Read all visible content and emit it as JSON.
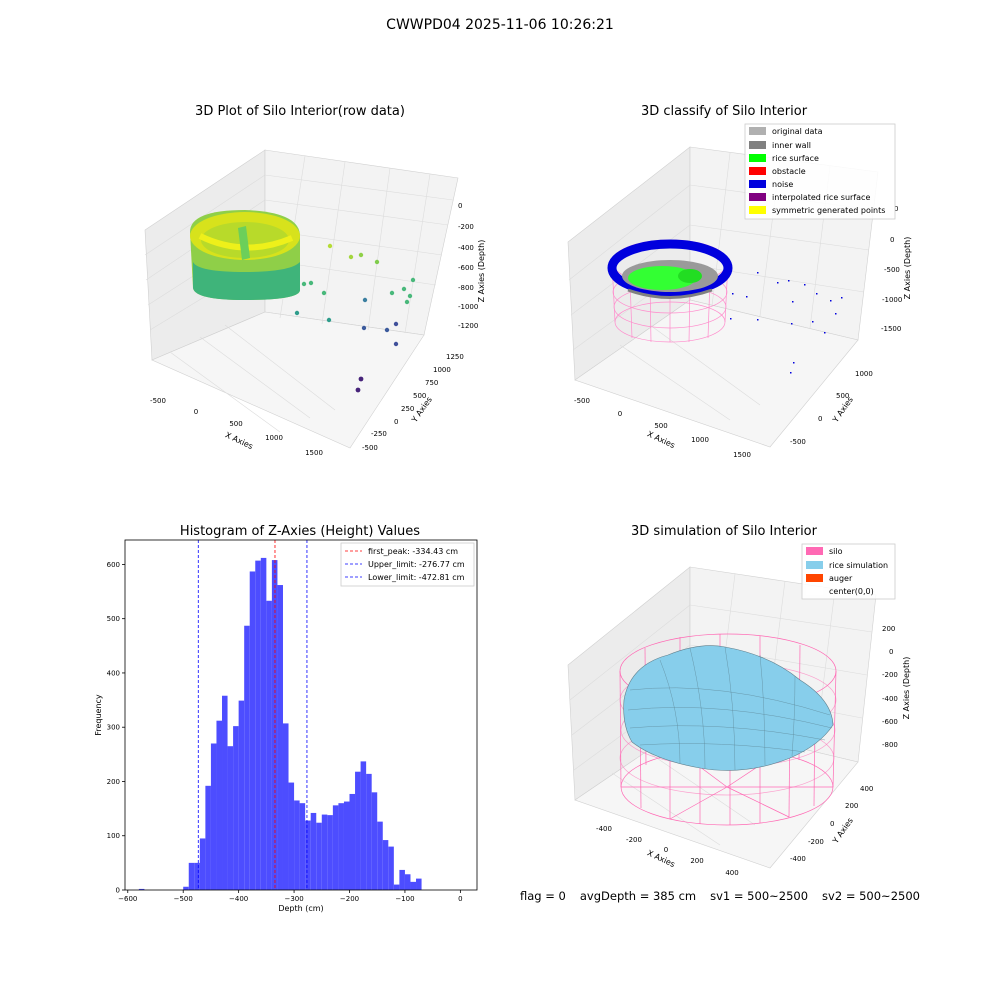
{
  "figure": {
    "suptitle": "CWWPD04 2025-11-06 10:26:21",
    "footer": {
      "flag": "flag = 0",
      "avg_depth": "avgDepth = 385 cm",
      "sv1": "sv1 = 500~2500",
      "sv2": "sv2 = 500~2500"
    }
  },
  "panels": {
    "raw": {
      "title": "3D Plot of Silo Interior(row data)",
      "x_label": "X Axies",
      "y_label": "Y Axies",
      "z_label": "Z Axies (Depth)",
      "x_ticks": [
        "-500",
        "0",
        "500",
        "1000",
        "1500"
      ],
      "y_ticks": [
        "-500",
        "-250",
        "0",
        "250",
        "500",
        "750",
        "1000",
        "1250"
      ],
      "z_ticks": [
        "0",
        "-200",
        "-400",
        "-600",
        "-800",
        "-1000",
        "-1200"
      ]
    },
    "classify": {
      "title": "3D classify of Silo Interior",
      "x_label": "X Axies",
      "y_label": "Y Axies",
      "z_label": "Z Axies (Depth)",
      "x_ticks": [
        "-500",
        "0",
        "500",
        "1000",
        "1500"
      ],
      "y_ticks": [
        "-500",
        "0",
        "500",
        "1000"
      ],
      "z_ticks": [
        "0",
        "-500",
        "-1000",
        "-1500"
      ],
      "z_top_tick": "0",
      "legend": [
        {
          "label": "original data",
          "color": "#b0b0b0"
        },
        {
          "label": "inner wall",
          "color": "#808080"
        },
        {
          "label": "rice surface",
          "color": "#00ff00"
        },
        {
          "label": "obstacle",
          "color": "#ff0000"
        },
        {
          "label": "noise",
          "color": "#0000dd"
        },
        {
          "label": "interpolated rice surface",
          "color": "#800080"
        },
        {
          "label": "symmetric generated points",
          "color": "#ffff00"
        }
      ]
    },
    "simulation": {
      "title": "3D simulation of Silo Interior",
      "x_label": "X Axies",
      "y_label": "Y Axies",
      "z_label": "Z Axies (Depth)",
      "x_ticks": [
        "-400",
        "-200",
        "0",
        "200",
        "400"
      ],
      "y_ticks": [
        "-400",
        "-200",
        "0",
        "200",
        "400"
      ],
      "z_ticks": [
        "200",
        "0",
        "-200",
        "-400",
        "-600",
        "-800"
      ],
      "legend": [
        {
          "label": "silo",
          "color": "#ff69b4"
        },
        {
          "label": "rice simulation",
          "color": "#87ceeb"
        },
        {
          "label": "auger",
          "color": "#ff4500"
        },
        {
          "label": "center(0,0)",
          "color": "#ffffff"
        }
      ]
    }
  },
  "chart_data": {
    "type": "bar",
    "title": "Histogram of Z-Axies (Height) Values",
    "xlabel": "Depth (cm)",
    "ylabel": "Frequency",
    "xlim": [
      -605,
      30
    ],
    "ylim": [
      0,
      645
    ],
    "x_ticks": [
      -600,
      -500,
      -400,
      -300,
      -200,
      -100,
      0
    ],
    "y_ticks": [
      0,
      100,
      200,
      300,
      400,
      500,
      600
    ],
    "bar_color": "#4d4dff",
    "bin_width": 10,
    "bins": [
      {
        "x": -575,
        "count": 2
      },
      {
        "x": -495,
        "count": 6
      },
      {
        "x": -485,
        "count": 50
      },
      {
        "x": -475,
        "count": 50
      },
      {
        "x": -465,
        "count": 95
      },
      {
        "x": -455,
        "count": 192
      },
      {
        "x": -445,
        "count": 270
      },
      {
        "x": -435,
        "count": 312
      },
      {
        "x": -425,
        "count": 358
      },
      {
        "x": -415,
        "count": 265
      },
      {
        "x": -405,
        "count": 302
      },
      {
        "x": -395,
        "count": 349
      },
      {
        "x": -385,
        "count": 487
      },
      {
        "x": -375,
        "count": 587
      },
      {
        "x": -365,
        "count": 607
      },
      {
        "x": -355,
        "count": 612
      },
      {
        "x": -345,
        "count": 533
      },
      {
        "x": -335,
        "count": 608
      },
      {
        "x": -325,
        "count": 562
      },
      {
        "x": -315,
        "count": 307
      },
      {
        "x": -305,
        "count": 198
      },
      {
        "x": -295,
        "count": 165
      },
      {
        "x": -285,
        "count": 160
      },
      {
        "x": -275,
        "count": 128
      },
      {
        "x": -265,
        "count": 142
      },
      {
        "x": -255,
        "count": 124
      },
      {
        "x": -245,
        "count": 139
      },
      {
        "x": -235,
        "count": 138
      },
      {
        "x": -225,
        "count": 156
      },
      {
        "x": -215,
        "count": 160
      },
      {
        "x": -205,
        "count": 163
      },
      {
        "x": -195,
        "count": 177
      },
      {
        "x": -185,
        "count": 218
      },
      {
        "x": -175,
        "count": 237
      },
      {
        "x": -165,
        "count": 214
      },
      {
        "x": -155,
        "count": 180
      },
      {
        "x": -145,
        "count": 126
      },
      {
        "x": -135,
        "count": 92
      },
      {
        "x": -125,
        "count": 80
      },
      {
        "x": -115,
        "count": 10
      },
      {
        "x": -105,
        "count": 37
      },
      {
        "x": -95,
        "count": 29
      },
      {
        "x": -85,
        "count": 15
      },
      {
        "x": -75,
        "count": 21
      }
    ],
    "vlines": [
      {
        "label": "first_peak: -334.43 cm",
        "x": -334.43,
        "color": "#ff0000"
      },
      {
        "label": "Upper_limit: -276.77 cm",
        "x": -276.77,
        "color": "#0000ff"
      },
      {
        "label": "Lower_limit: -472.81 cm",
        "x": -472.81,
        "color": "#0000ff"
      }
    ]
  }
}
